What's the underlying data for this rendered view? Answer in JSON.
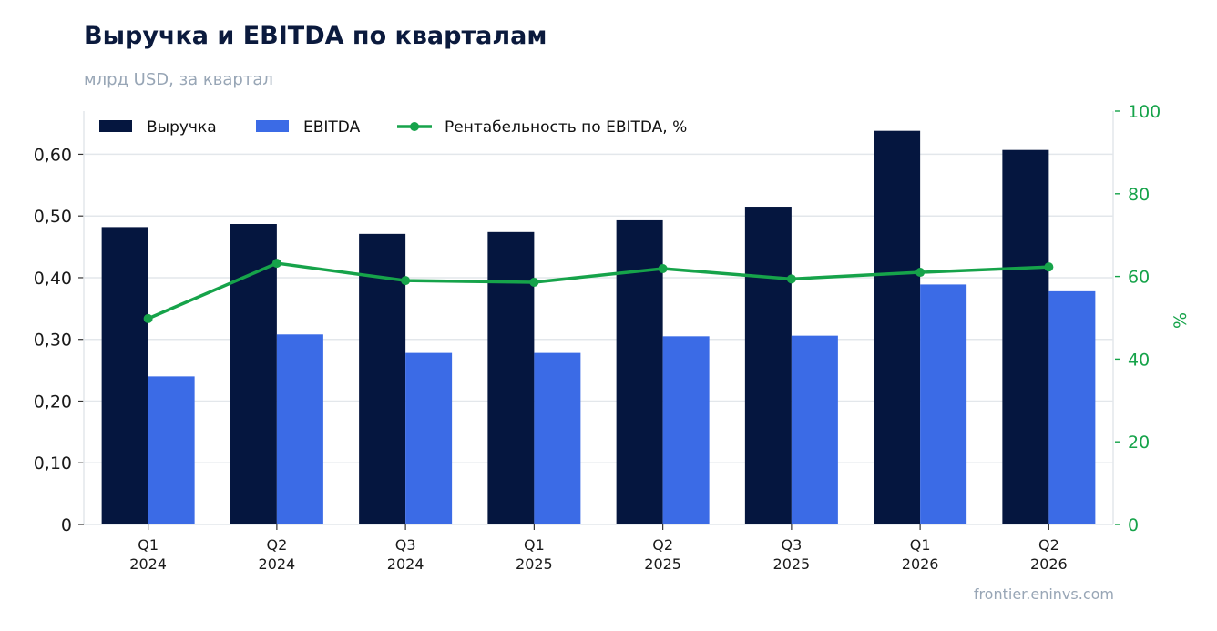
{
  "title": "Выручка и EBITDA по кварталам",
  "subtitle": "млрд USD, за квартал",
  "source": "frontier.eninvs.com",
  "chart_data": {
    "type": "bar",
    "categories": [
      [
        "Q1",
        "2024"
      ],
      [
        "Q2",
        "2024"
      ],
      [
        "Q3",
        "2024"
      ],
      [
        "Q1",
        "2025"
      ],
      [
        "Q2",
        "2025"
      ],
      [
        "Q3",
        "2025"
      ],
      [
        "Q1",
        "2026"
      ],
      [
        "Q2",
        "2026"
      ]
    ],
    "series": [
      {
        "name": "Выручка",
        "kind": "bar",
        "axis": "left",
        "color": "#05163f",
        "values": [
          0.482,
          0.487,
          0.471,
          0.474,
          0.493,
          0.515,
          0.638,
          0.607
        ]
      },
      {
        "name": "EBITDA",
        "kind": "bar",
        "axis": "left",
        "color": "#3b6be6",
        "values": [
          0.24,
          0.308,
          0.278,
          0.278,
          0.305,
          0.306,
          0.389,
          0.378
        ]
      },
      {
        "name": "Рентабельность по EBITDA, %",
        "kind": "line",
        "axis": "right",
        "color": "#16a34a",
        "values": [
          49.8,
          63.2,
          59.0,
          58.6,
          61.9,
          59.4,
          61.0,
          62.3
        ]
      }
    ],
    "y_left": {
      "min": 0,
      "max": 0.67,
      "ticks": [
        0,
        0.1,
        0.2,
        0.3,
        0.4,
        0.5,
        0.6
      ],
      "tick_labels": [
        "0",
        "0,10",
        "0,20",
        "0,30",
        "0,40",
        "0,50",
        "0,60"
      ]
    },
    "y_right": {
      "min": 0,
      "max": 100,
      "label": "%",
      "ticks": [
        0,
        20,
        40,
        60,
        80,
        100
      ],
      "tick_labels": [
        "0",
        "20",
        "40",
        "60",
        "80",
        "100"
      ]
    },
    "grid": true,
    "legend_position": "top-left"
  }
}
